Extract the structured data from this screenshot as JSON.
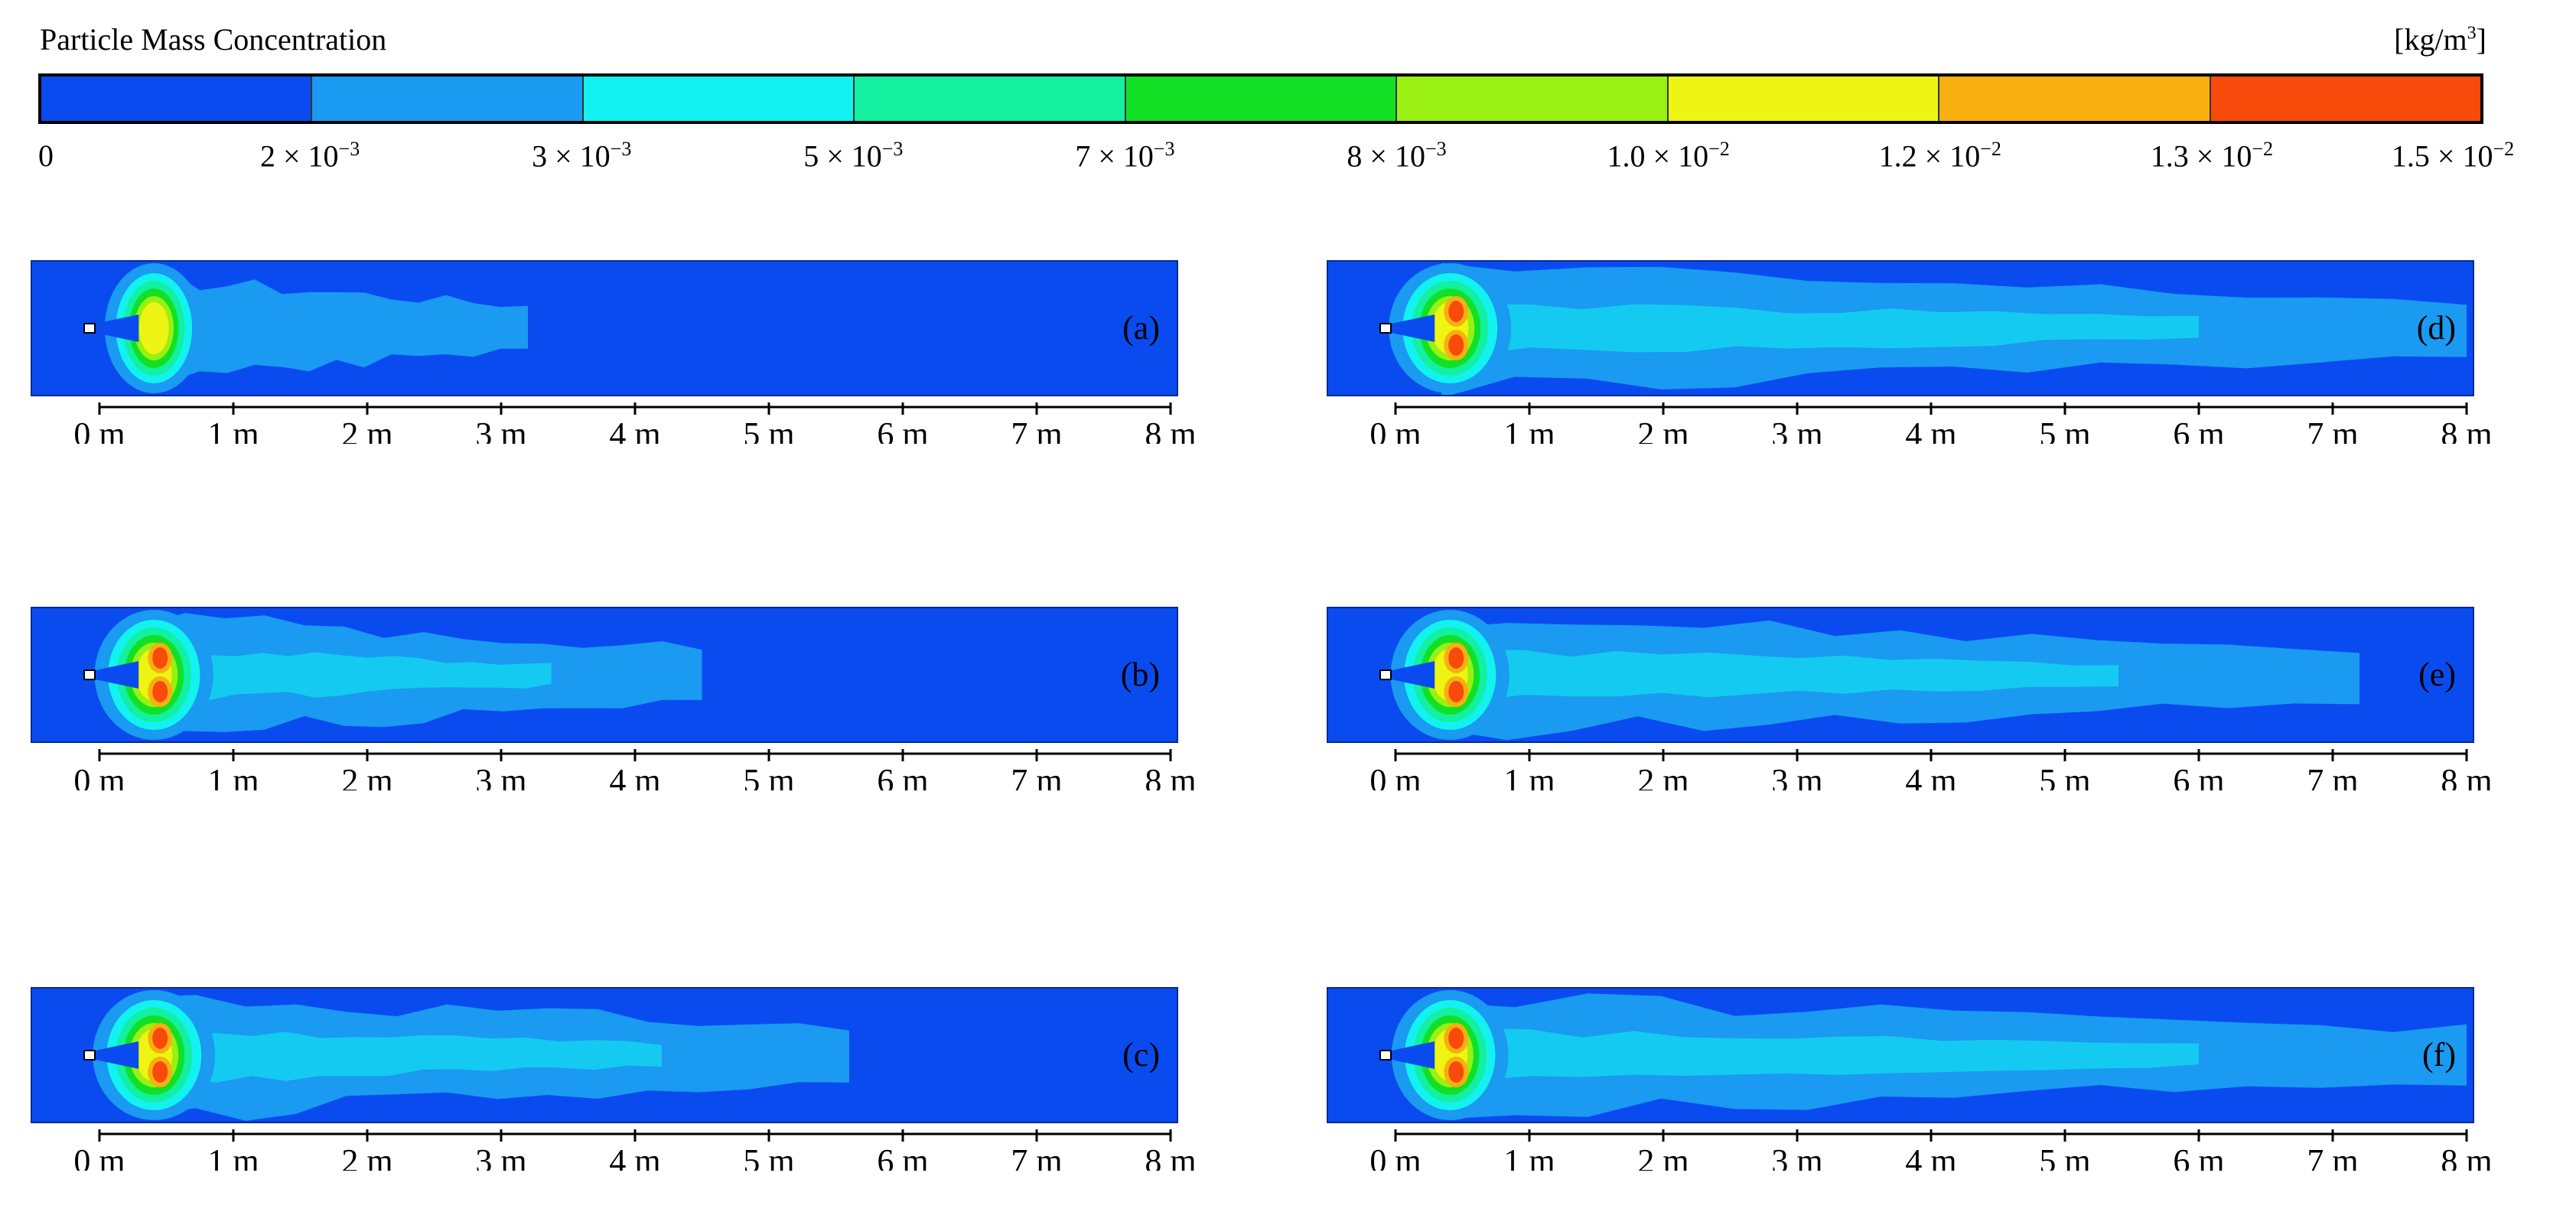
{
  "legend": {
    "title": "Particle Mass Concentration",
    "unit_base": "[kg/m",
    "unit_sup": "3",
    "unit_end": "]",
    "colors": [
      "#0a4bf0",
      "#1a9af0",
      "#12f2f0",
      "#12f0a0",
      "#12e025",
      "#9af012",
      "#eef512",
      "#f8b010",
      "#f84a0a"
    ],
    "ticks": [
      {
        "mant": "0",
        "exp": ""
      },
      {
        "mant": "2 × 10",
        "exp": "−3"
      },
      {
        "mant": "3 × 10",
        "exp": "−3"
      },
      {
        "mant": "5 × 10",
        "exp": "−3"
      },
      {
        "mant": "7 × 10",
        "exp": "−3"
      },
      {
        "mant": "8 × 10",
        "exp": "−3"
      },
      {
        "mant": "1.0 × 10",
        "exp": "−2"
      },
      {
        "mant": "1.2 × 10",
        "exp": "−2"
      },
      {
        "mant": "1.3 × 10",
        "exp": "−2"
      },
      {
        "mant": "1.5 × 10",
        "exp": "−2"
      }
    ]
  },
  "axis": {
    "tick_labels": [
      "0 m",
      "1 m",
      "2 m",
      "3 m",
      "4 m",
      "5 m",
      "6 m",
      "7 m",
      "8 m"
    ]
  },
  "panels": [
    {
      "id": "a",
      "label": "(a)",
      "plume_length_m": 3.2,
      "intensity": 0.35
    },
    {
      "id": "b",
      "label": "(b)",
      "plume_length_m": 4.5,
      "intensity": 0.9
    },
    {
      "id": "c",
      "label": "(c)",
      "plume_length_m": 5.6,
      "intensity": 1.0
    },
    {
      "id": "d",
      "label": "(d)",
      "plume_length_m": 8.0,
      "intensity": 1.0
    },
    {
      "id": "e",
      "label": "(e)",
      "plume_length_m": 7.2,
      "intensity": 0.9
    },
    {
      "id": "f",
      "label": "(f)",
      "plume_length_m": 8.0,
      "intensity": 0.85
    }
  ]
}
